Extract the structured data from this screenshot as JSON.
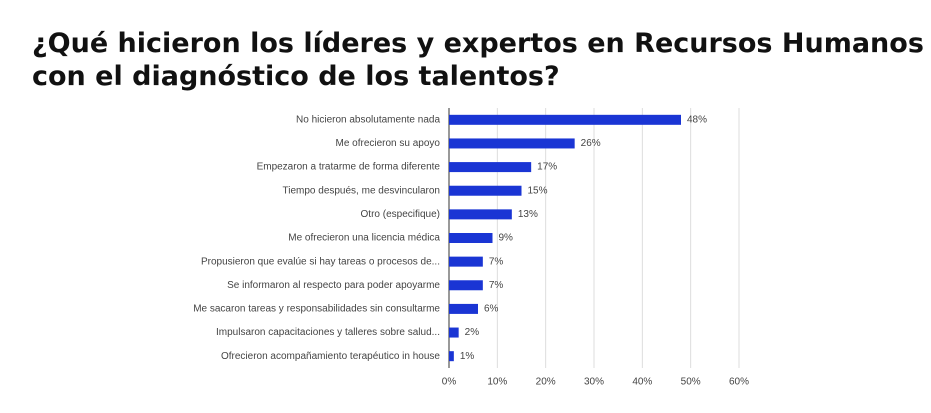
{
  "chart_data": {
    "type": "bar",
    "orientation": "horizontal",
    "title": "¿Qué hicieron los líderes y expertos en Recursos Humanos con el diagnóstico de los talentos?",
    "categories": [
      "No hicieron absolutamente nada",
      "Me ofrecieron su apoyo",
      "Empezaron a tratarme de forma diferente",
      "Tiempo después, me desvincularon",
      "Otro (especifique)",
      "Me ofrecieron una licencia médica",
      "Propusieron que evalúe si hay tareas o procesos de...",
      "Se informaron al respecto para poder apoyarme",
      "Me sacaron tareas y responsabilidades sin consultarme",
      "Impulsaron capacitaciones y talleres sobre salud...",
      "Ofrecieron acompañamiento terapéutico in house"
    ],
    "values": [
      48,
      26,
      17,
      15,
      13,
      9,
      7,
      7,
      6,
      2,
      1
    ],
    "value_labels": [
      "48%",
      "26%",
      "17%",
      "15%",
      "13%",
      "9%",
      "7%",
      "7%",
      "6%",
      "2%",
      "1%"
    ],
    "color": "#1a35d4",
    "xlim": [
      0,
      60
    ],
    "xticks": [
      {
        "value": 0,
        "label": "0%"
      },
      {
        "value": 10,
        "label": "10%"
      },
      {
        "value": 20,
        "label": "20%"
      },
      {
        "value": 30,
        "label": "30%"
      },
      {
        "value": 40,
        "label": "40%"
      },
      {
        "value": 50,
        "label": "50%"
      },
      {
        "value": 60,
        "label": "60%"
      }
    ],
    "grid": true
  }
}
